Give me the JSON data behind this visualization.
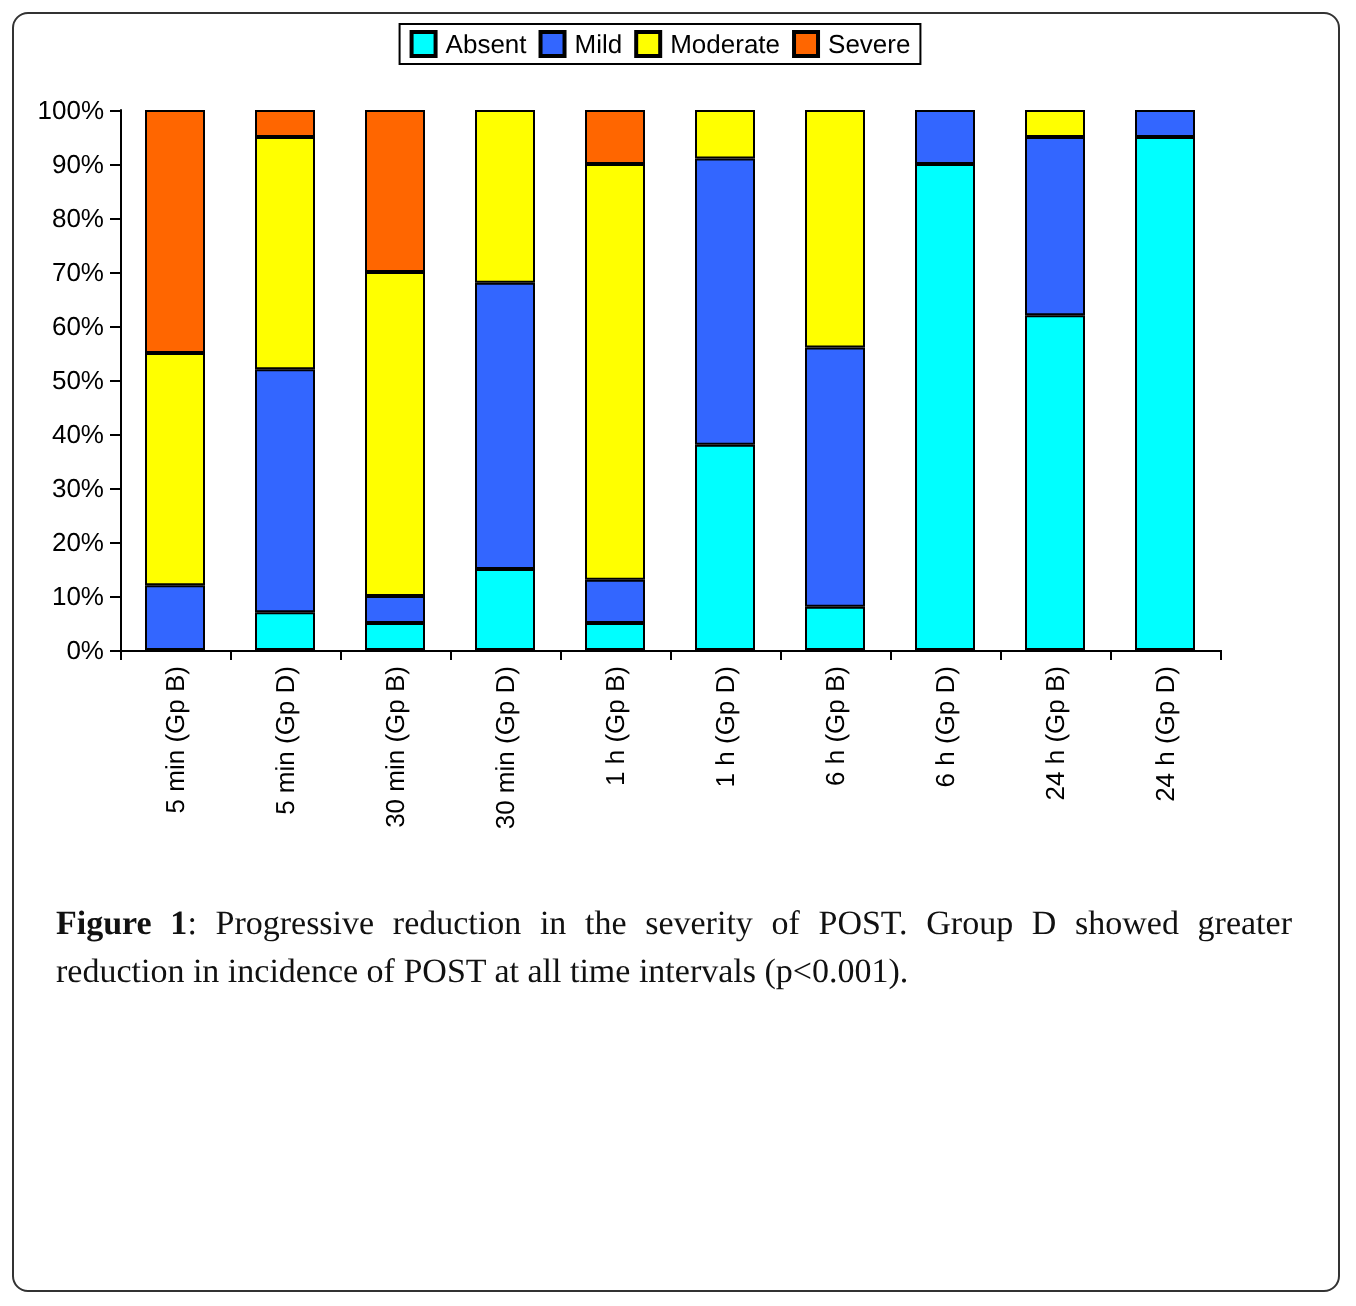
{
  "chart_data": {
    "type": "bar",
    "stacked": true,
    "categories": [
      "5 min (Gp B)",
      "5 min (Gp D)",
      "30 min (Gp B)",
      "30 min (Gp D)",
      "1 h (Gp B)",
      "1 h (Gp D)",
      "6 h (Gp B)",
      "6 h (Gp D)",
      "24 h (Gp B)",
      "24 h (Gp D)"
    ],
    "series": [
      {
        "name": "Absent",
        "color": "#00ffff",
        "values": [
          0,
          7,
          5,
          15,
          5,
          38,
          8,
          90,
          62,
          95
        ]
      },
      {
        "name": "Mild",
        "color": "#3366ff",
        "values": [
          12,
          45,
          5,
          53,
          8,
          53,
          48,
          10,
          33,
          5
        ]
      },
      {
        "name": "Moderate",
        "color": "#ffff00",
        "values": [
          43,
          43,
          60,
          32,
          77,
          9,
          44,
          0,
          5,
          0
        ]
      },
      {
        "name": "Severe",
        "color": "#ff6600",
        "values": [
          45,
          5,
          30,
          0,
          10,
          0,
          0,
          0,
          0,
          0
        ]
      }
    ],
    "ylim": [
      0,
      100
    ],
    "yticks": [
      {
        "value": 0,
        "label": "0%"
      },
      {
        "value": 10,
        "label": "10%"
      },
      {
        "value": 20,
        "label": "20%"
      },
      {
        "value": 30,
        "label": "30%"
      },
      {
        "value": 40,
        "label": "40%"
      },
      {
        "value": 50,
        "label": "50%"
      },
      {
        "value": 60,
        "label": "60%"
      },
      {
        "value": 70,
        "label": "70%"
      },
      {
        "value": 80,
        "label": "80%"
      },
      {
        "value": 90,
        "label": "90%"
      },
      {
        "value": 100,
        "label": "100%"
      }
    ],
    "grid": false,
    "legend": "top",
    "annotations": [
      "Figure 1: Progressive reduction in the severity of POST. Group D showed greater reduction in incidence of POST at all time intervals (p<0.001)."
    ]
  }
}
